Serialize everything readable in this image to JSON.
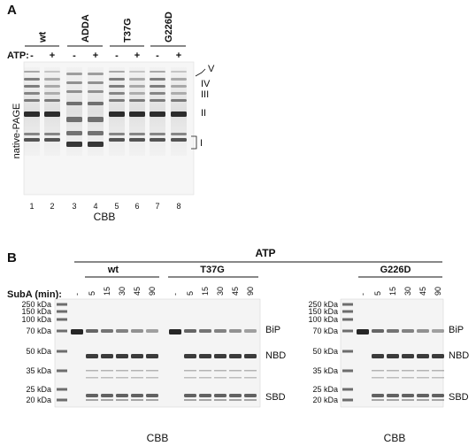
{
  "panelA": {
    "letter": "A",
    "groups": [
      "wt",
      "ADDA",
      "T37G",
      "G226D"
    ],
    "atp_label": "ATP:",
    "atp_signs": [
      "-",
      "+",
      "-",
      "+",
      "-",
      "+",
      "-",
      "+"
    ],
    "lane_numbers": [
      "1",
      "2",
      "3",
      "4",
      "5",
      "6",
      "7",
      "8"
    ],
    "y_label": "native-PAGE",
    "stain": "CBB",
    "band_labels": [
      "V",
      "IV",
      "III",
      "II",
      "I"
    ]
  },
  "panelB": {
    "letter": "B",
    "atp_label": "ATP",
    "subA_label": "SubA (min):",
    "left_groups": [
      "wt",
      "T37G"
    ],
    "right_group": "G226D",
    "time_points": [
      "-",
      "5",
      "15",
      "30",
      "45",
      "90"
    ],
    "markers": [
      "250 kDa",
      "150 kDa",
      "100 kDa",
      "70 kDa",
      "50 kDa",
      "35 kDa",
      "25 kDa",
      "20 kDa"
    ],
    "band_labels": [
      "BiP",
      "NBD",
      "SBD"
    ],
    "stain": "CBB"
  }
}
